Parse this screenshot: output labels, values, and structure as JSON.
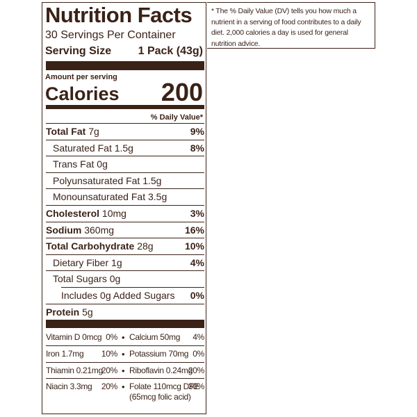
{
  "title": "Nutrition Facts",
  "servings": "30 Servings Per Container",
  "serving_size": {
    "label": "Serving Size",
    "value": "1 Pack (43g)"
  },
  "amount_per_serving": "Amount per serving",
  "calories": {
    "label": "Calories",
    "value": "200"
  },
  "dv_header": "% Daily Value*",
  "nutrients": [
    {
      "name": "Total Fat",
      "amount": "7g",
      "dv": "9%",
      "bold": true,
      "indent": 0
    },
    {
      "name": "Saturated Fat",
      "amount": "1.5g",
      "dv": "8%",
      "bold": false,
      "indent": 1
    },
    {
      "name": "Trans Fat",
      "amount": "0g",
      "bold": false,
      "indent": 1
    },
    {
      "name": "Polyunsaturated Fat",
      "amount": "1.5g",
      "bold": false,
      "indent": 1
    },
    {
      "name": "Monounsaturated Fat",
      "amount": "3.5g",
      "bold": false,
      "indent": 1
    },
    {
      "name": "Cholesterol",
      "amount": "10mg",
      "dv": "3%",
      "bold": true,
      "indent": 0
    },
    {
      "name": "Sodium",
      "amount": "360mg",
      "dv": "16%",
      "bold": true,
      "indent": 0
    },
    {
      "name": "Total Carbohydrate",
      "amount": "28g",
      "dv": "10%",
      "bold": true,
      "indent": 0
    },
    {
      "name": "Dietary Fiber",
      "amount": "1g",
      "dv": "4%",
      "bold": false,
      "indent": 1
    },
    {
      "name": "Total Sugars",
      "amount": "0g",
      "bold": false,
      "indent": 1
    },
    {
      "name": "Includes 0g Added Sugars",
      "dv": "0%",
      "bold": false,
      "indent": 2
    },
    {
      "name": "Protein",
      "amount": "5g",
      "bold": true,
      "indent": 0
    }
  ],
  "vitamins": [
    [
      {
        "name": "Vitamin D 0mcg",
        "dv": "0%"
      },
      {
        "name": "Calcium 50mg",
        "dv": "4%"
      }
    ],
    [
      {
        "name": "Iron 1.7mg",
        "dv": "10%"
      },
      {
        "name": "Potassium 70mg",
        "dv": "0%"
      }
    ],
    [
      {
        "name": "Thiamin 0.21mg",
        "dv": "20%"
      },
      {
        "name": "Riboflavin 0.24mg",
        "dv": "20%"
      }
    ],
    [
      {
        "name": "Niacin 3.3mg",
        "dv": "20%"
      },
      {
        "name": "Folate 110mcg DFE",
        "dv": "30%",
        "note": "(65mcg folic acid)"
      }
    ]
  ],
  "footnote": "* The % Daily Value (DV) tells you how much a nutrient in a serving of food contributes to a daily diet. 2,000 calories a day is used for general nutrition advice."
}
